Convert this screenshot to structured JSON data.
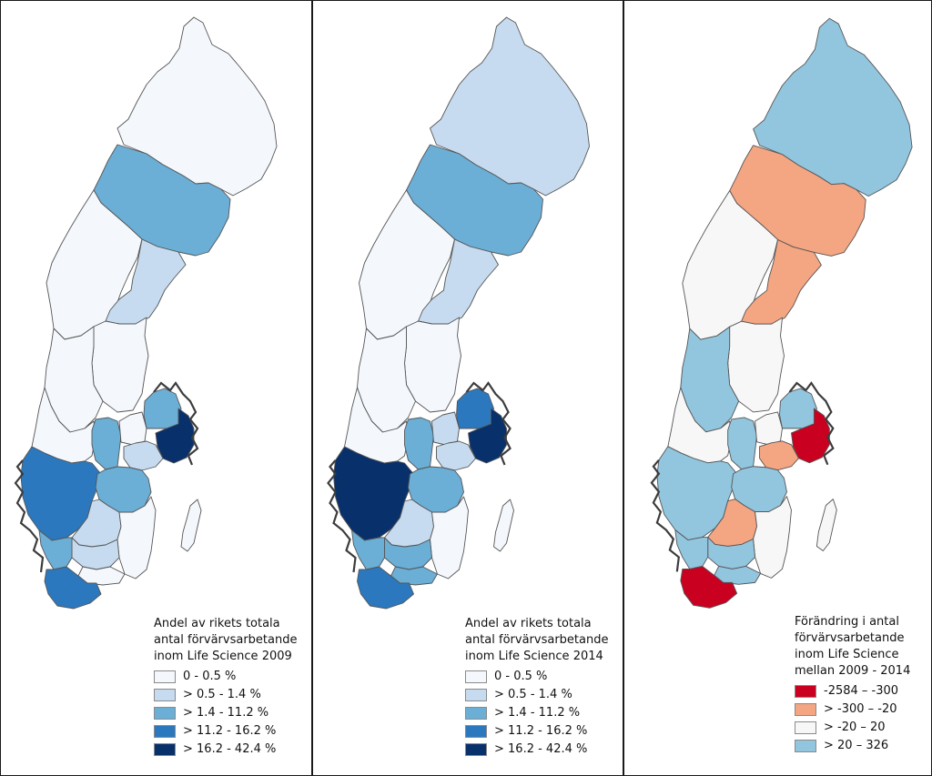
{
  "outline_color": "#555555",
  "coast_color": "#3c3c3c",
  "panels": [
    {
      "legend": {
        "title_lines": [
          "Andel av rikets totala",
          "antal förvärvsarbetande",
          "inom Life Science 2009"
        ],
        "classes": [
          {
            "label": "0 - 0.5 %",
            "color": "#f4f8fd"
          },
          {
            "label": "> 0.5 - 1.4 %",
            "color": "#c6dbef"
          },
          {
            "label": "> 1.4 - 11.2 %",
            "color": "#6baed6"
          },
          {
            "label": "> 11.2 - 16.2 %",
            "color": "#2b78be"
          },
          {
            "label": "> 16.2 - 42.4 %",
            "color": "#08306b"
          }
        ]
      },
      "regions": {
        "norrbotten": 0,
        "vasterbotten": 2,
        "jamtland": 0,
        "vasternorrland": 1,
        "gavleborg": 0,
        "dalarna": 0,
        "varmland": 0,
        "orebro": 2,
        "vastmanland": 0,
        "uppsala": 2,
        "stockholm": 4,
        "sodermanland": 1,
        "vastra_gotaland": 3,
        "ostergotland": 2,
        "jonkoping": 1,
        "kalmar": 0,
        "gotland": 0,
        "kronoberg": 1,
        "halland": 2,
        "blekinge": 0,
        "skane": 3
      }
    },
    {
      "legend": {
        "title_lines": [
          "Andel av rikets totala",
          "antal förvärvsarbetande",
          "inom Life Science 2014"
        ],
        "classes": [
          {
            "label": "0 - 0.5 %",
            "color": "#f4f8fd"
          },
          {
            "label": "> 0.5 - 1.4 %",
            "color": "#c6dbef"
          },
          {
            "label": "> 1.4 - 11.2 %",
            "color": "#6baed6"
          },
          {
            "label": "> 11.2 - 16.2 %",
            "color": "#2b78be"
          },
          {
            "label": "> 16.2 - 42.4 %",
            "color": "#08306b"
          }
        ]
      },
      "regions": {
        "norrbotten": 1,
        "vasterbotten": 2,
        "jamtland": 0,
        "vasternorrland": 1,
        "gavleborg": 0,
        "dalarna": 0,
        "varmland": 0,
        "orebro": 2,
        "vastmanland": 1,
        "uppsala": 3,
        "stockholm": 4,
        "sodermanland": 1,
        "vastra_gotaland": 4,
        "ostergotland": 2,
        "jonkoping": 1,
        "kalmar": 0,
        "gotland": 0,
        "kronoberg": 2,
        "halland": 2,
        "blekinge": 2,
        "skane": 3
      }
    },
    {
      "legend": {
        "title_lines": [
          "Förändring i antal",
          "förvärvsarbetande",
          "inom Life Science",
          "mellan 2009 - 2014"
        ],
        "classes": [
          {
            "label": "-2584  –  -300",
            "color": "#ca0020"
          },
          {
            "label": "> -300  –  -20",
            "color": "#f4a582"
          },
          {
            "label": "> -20  –  20",
            "color": "#f7f7f7"
          },
          {
            "label": "> 20  –  326",
            "color": "#92c5de"
          }
        ]
      },
      "regions": {
        "norrbotten": 3,
        "vasterbotten": 1,
        "jamtland": 2,
        "vasternorrland": 1,
        "gavleborg": 2,
        "dalarna": 3,
        "varmland": 2,
        "orebro": 3,
        "vastmanland": 2,
        "uppsala": 3,
        "stockholm": 0,
        "sodermanland": 1,
        "vastra_gotaland": 3,
        "ostergotland": 3,
        "jonkoping": 1,
        "kalmar": 2,
        "gotland": 2,
        "kronoberg": 3,
        "halland": 3,
        "blekinge": 3,
        "skane": 0
      }
    }
  ]
}
